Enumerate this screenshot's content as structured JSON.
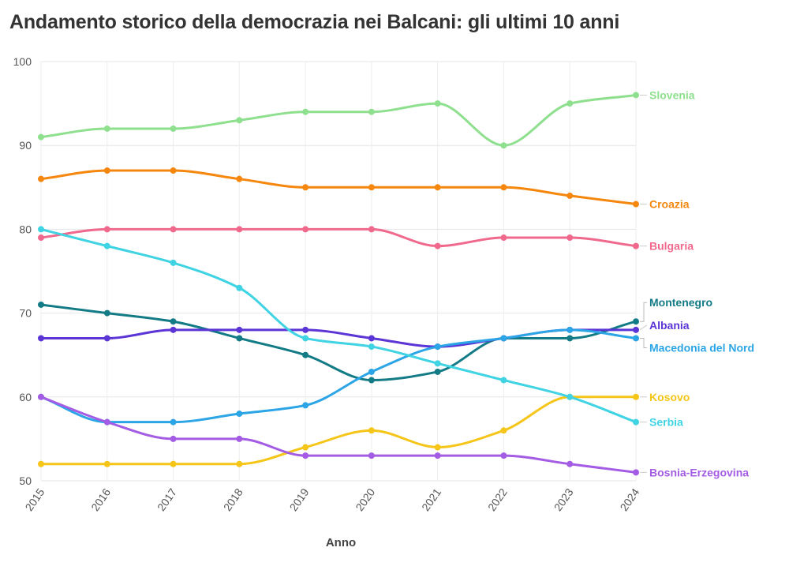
{
  "title": "Andamento storico della democrazia nei Balcani: gli ultimi 10 anni",
  "chart_data": {
    "type": "line",
    "xlabel": "Anno",
    "ylabel": "",
    "ylim": [
      50,
      100
    ],
    "yticks": [
      50,
      60,
      70,
      80,
      90,
      100
    ],
    "x": [
      2015,
      2016,
      2017,
      2018,
      2019,
      2020,
      2021,
      2022,
      2023,
      2024
    ],
    "grid": true,
    "legend": "direct labels at right end of lines",
    "series": [
      {
        "name": "Slovenia",
        "color": "#8ee08e",
        "values": [
          91,
          92,
          92,
          93,
          94,
          94,
          95,
          90,
          95,
          96
        ]
      },
      {
        "name": "Croazia",
        "color": "#f5870f",
        "values": [
          86,
          87,
          87,
          86,
          85,
          85,
          85,
          85,
          84,
          83
        ]
      },
      {
        "name": "Bulgaria",
        "color": "#f0698c",
        "values": [
          79,
          80,
          80,
          80,
          80,
          80,
          78,
          79,
          79,
          78
        ]
      },
      {
        "name": "Montenegro",
        "color": "#137b86",
        "values": [
          71,
          70,
          69,
          67,
          65,
          62,
          63,
          67,
          67,
          69
        ]
      },
      {
        "name": "Albania",
        "color": "#5b35d5",
        "values": [
          67,
          67,
          68,
          68,
          68,
          67,
          66,
          67,
          68,
          68
        ]
      },
      {
        "name": "Macedonia del Nord",
        "color": "#2ba5e5",
        "values": [
          60,
          57,
          57,
          58,
          59,
          63,
          66,
          67,
          68,
          67
        ]
      },
      {
        "name": "Kosovo",
        "color": "#f5c518",
        "values": [
          52,
          52,
          52,
          52,
          54,
          56,
          54,
          56,
          60,
          60
        ]
      },
      {
        "name": "Serbia",
        "color": "#3fd3e3",
        "values": [
          80,
          78,
          76,
          73,
          67,
          66,
          64,
          62,
          60,
          57
        ]
      },
      {
        "name": "Bosnia-Erzegovina",
        "color": "#a35ce3",
        "values": [
          60,
          57,
          55,
          55,
          53,
          53,
          53,
          53,
          52,
          51
        ]
      }
    ]
  }
}
